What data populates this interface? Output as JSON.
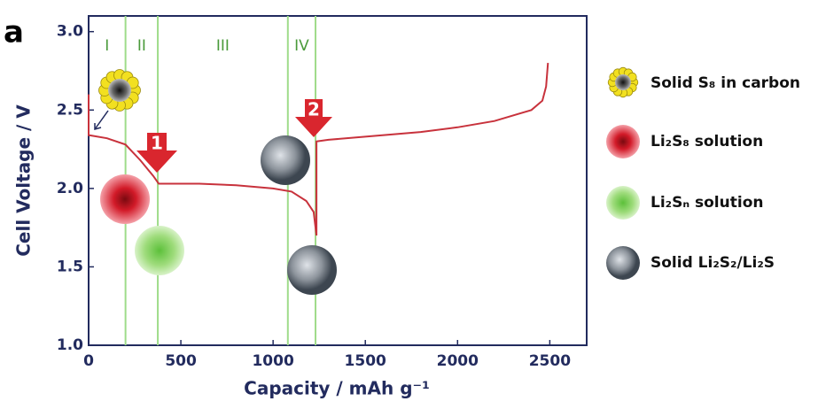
{
  "panel_label": "a",
  "chart_data": {
    "type": "line",
    "y_label": "Cell Voltage / V",
    "x_label": "Capacity / mAh g⁻¹",
    "xlim": [
      0,
      2700
    ],
    "ylim": [
      1.0,
      3.1
    ],
    "xticks": [
      0,
      500,
      1000,
      1500,
      2000,
      2500
    ],
    "yticks": [
      {
        "value": 1,
        "label": "1.0"
      },
      1.5,
      {
        "value": 2,
        "label": "2.0"
      },
      2.5,
      {
        "value": 3,
        "label": "3.0"
      }
    ],
    "x": [
      0,
      0,
      100,
      200,
      280,
      350,
      380,
      450,
      600,
      800,
      1000,
      1100,
      1180,
      1220,
      1235,
      1235,
      1300,
      1500,
      1800,
      2000,
      2200,
      2400,
      2460,
      2480,
      2490
    ],
    "series": [
      {
        "color": "#c8323c",
        "values": [
          2.6,
          2.34,
          2.32,
          2.28,
          2.18,
          2.08,
          2.03,
          2.03,
          2.03,
          2.02,
          2.0,
          1.98,
          1.92,
          1.85,
          1.7,
          2.3,
          2.31,
          2.33,
          2.36,
          2.39,
          2.43,
          2.5,
          2.56,
          2.65,
          2.8
        ]
      }
    ],
    "regions": [
      "I",
      "II",
      "III",
      "IV"
    ],
    "region_bounds": [
      0,
      200,
      375,
      1080,
      1230
    ],
    "markers": [
      "1",
      "2"
    ],
    "legend": [
      "Solid S₈ in carbon",
      "Li₂S₈ solution",
      "Li₂Sₙ solution",
      "Solid Li₂S₂/Li₂S"
    ]
  }
}
